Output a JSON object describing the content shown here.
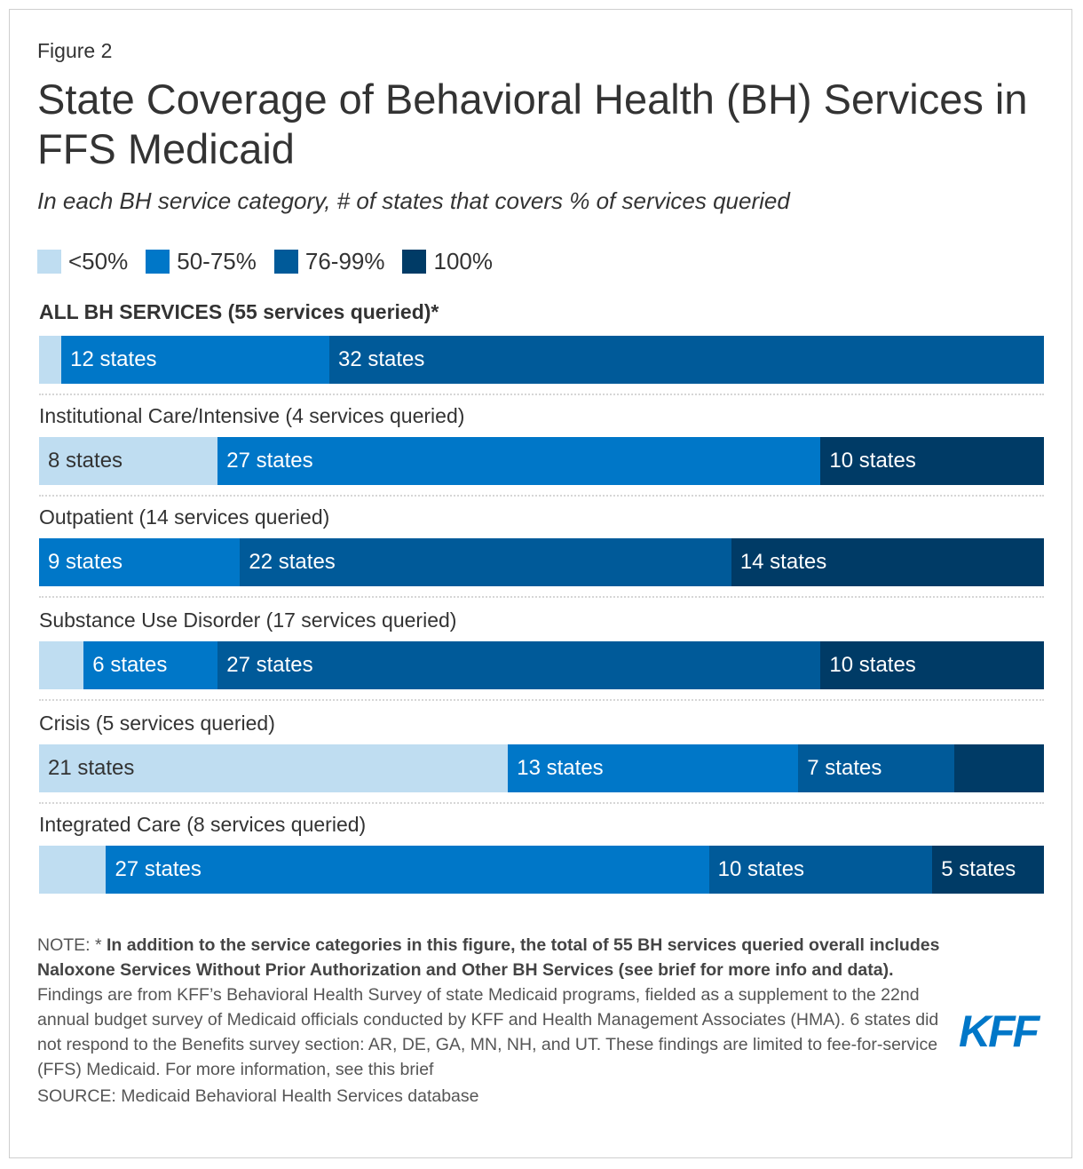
{
  "figure_label": "Figure 2",
  "title": "State Coverage of Behavioral Health (BH) Services in FFS Medicaid",
  "subtitle": "In each BH service category, # of states that covers % of services queried",
  "chart_data": {
    "type": "bar",
    "orientation": "horizontal",
    "stacked": true,
    "unit": "states",
    "legend_position": "top-left",
    "series": [
      {
        "name": "<50%",
        "color": "#BFDDF1",
        "values": [
          1,
          8,
          0,
          2,
          21,
          3
        ]
      },
      {
        "name": "50-75%",
        "color": "#0077C8",
        "values": [
          12,
          27,
          9,
          6,
          13,
          27
        ]
      },
      {
        "name": "76-99%",
        "color": "#005A99",
        "values": [
          32,
          0,
          22,
          27,
          7,
          10
        ]
      },
      {
        "name": "100%",
        "color": "#003B66",
        "values": [
          0,
          10,
          14,
          10,
          4,
          5
        ]
      }
    ],
    "categories": [
      "ALL BH SERVICES (55 services queried)*",
      "Institutional Care/Intensive (4 services queried)",
      "Outpatient (14 services queried)",
      "Substance Use Disorder (17 services queried)",
      "Crisis (5 services queried)",
      "Integrated Care (8 services queried)"
    ],
    "data_labels": [
      [
        "",
        "12 states",
        "32 states",
        ""
      ],
      [
        "8 states",
        "27 states",
        "",
        "10 states"
      ],
      [
        "",
        "9 states",
        "22 states",
        "14 states"
      ],
      [
        "",
        "6 states",
        "27 states",
        "10 states"
      ],
      [
        "21 states",
        "13 states",
        "7 states",
        ""
      ],
      [
        "",
        "27 states",
        "10 states",
        "5 states"
      ]
    ]
  },
  "notes": {
    "note_prefix": "NOTE: * ",
    "note_bold": "In addition to the service categories in this figure, the total of 55 BH services queried overall includes Naloxone Services Without Prior Authorization and Other BH Services (see brief for more info and data).",
    "findings": "Findings are from KFF’s Behavioral Health Survey of state Medicaid programs, fielded as a supplement to the 22nd annual budget survey of Medicaid officials conducted by KFF and Health Management Associates (HMA). 6 states did not respond to the Benefits survey section: AR, DE, GA, MN, NH, and UT. These findings are limited to fee-for-service (FFS) Medicaid. For more information, see this brief",
    "source": "SOURCE: Medicaid Behavioral Health Services database"
  },
  "logo": "KFF"
}
